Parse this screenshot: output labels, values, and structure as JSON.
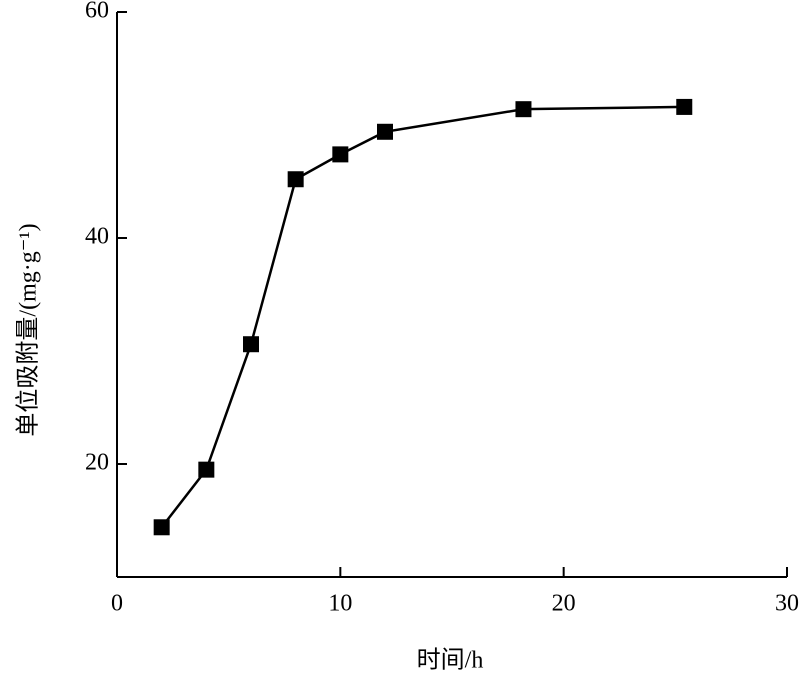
{
  "chart_data": {
    "type": "line",
    "x_label": "时间/h",
    "y_label": "单位吸附量/(mg·g⁻¹)",
    "x": [
      2,
      4,
      6,
      8,
      10,
      12,
      18.2,
      25.4
    ],
    "series": [
      {
        "color": "#000000",
        "values": [
          14.4,
          19.5,
          30.6,
          45.2,
          47.4,
          49.4,
          51.4,
          51.6
        ]
      }
    ],
    "xlim": [
      0,
      30
    ],
    "xticks": [
      0,
      10,
      20,
      30
    ],
    "ylim": [
      10,
      60
    ],
    "yticks": [
      20,
      40,
      60
    ]
  }
}
